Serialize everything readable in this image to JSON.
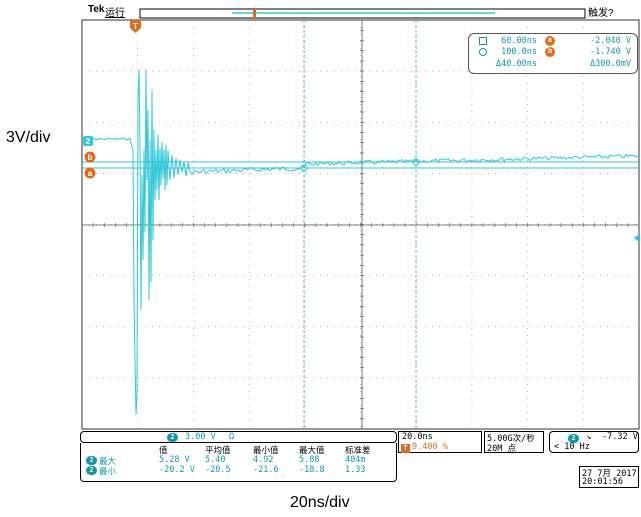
{
  "outer_labels": {
    "volts_per_div": "3V/div",
    "time_per_div": "20ns/div"
  },
  "topbar": {
    "brand": "Tek",
    "run_state": "运行",
    "trigger_status": "触发?"
  },
  "markers": {
    "channel": "2",
    "cursor_a": "a",
    "cursor_b": "b",
    "trigger_pos": "T"
  },
  "cursor_readout": {
    "a_time": "60.00ns",
    "b_time": "100.0ns",
    "delta_time": "Δ40.00ns",
    "a_volt": "-2.040 V",
    "b_volt": "-1.740 V",
    "delta_volt": "Δ300.0mV",
    "a_label": "a",
    "b_label": "b"
  },
  "vscale": {
    "channel": "2",
    "value": "3.00 V",
    "coupling": "Ω"
  },
  "measurements": {
    "headers": [
      "值",
      "平均值",
      "最小值",
      "最大值",
      "标准差"
    ],
    "rows": [
      {
        "channel": "2",
        "label": "最大",
        "values": [
          "5.28 V",
          "5.40",
          "4.92",
          "5.88",
          "404m"
        ]
      },
      {
        "channel": "2",
        "label": "最小",
        "values": [
          "-20.2 V",
          "-20.5",
          "-21.6",
          "-18.8",
          "1.33"
        ]
      }
    ]
  },
  "timebase": {
    "scale": "20.0ns",
    "trig_pos_icon": "T",
    "trig_pos": "9.400 %"
  },
  "acquisition": {
    "rate": "5.00G次/秒",
    "record": "20M 点"
  },
  "trigger": {
    "channel": "2",
    "slope": "↘",
    "level": "-7.32 V",
    "freq": "< 10 Hz"
  },
  "datetime": {
    "date": "27 7月  2017",
    "time": "20:01:56"
  },
  "colors": {
    "trace": "#2fc8d8",
    "text_cyan": "#0f9aa6",
    "marker_orange": "#e06d1e",
    "grid": "#8a8a8a",
    "cursor": "#2fc8d8"
  }
}
